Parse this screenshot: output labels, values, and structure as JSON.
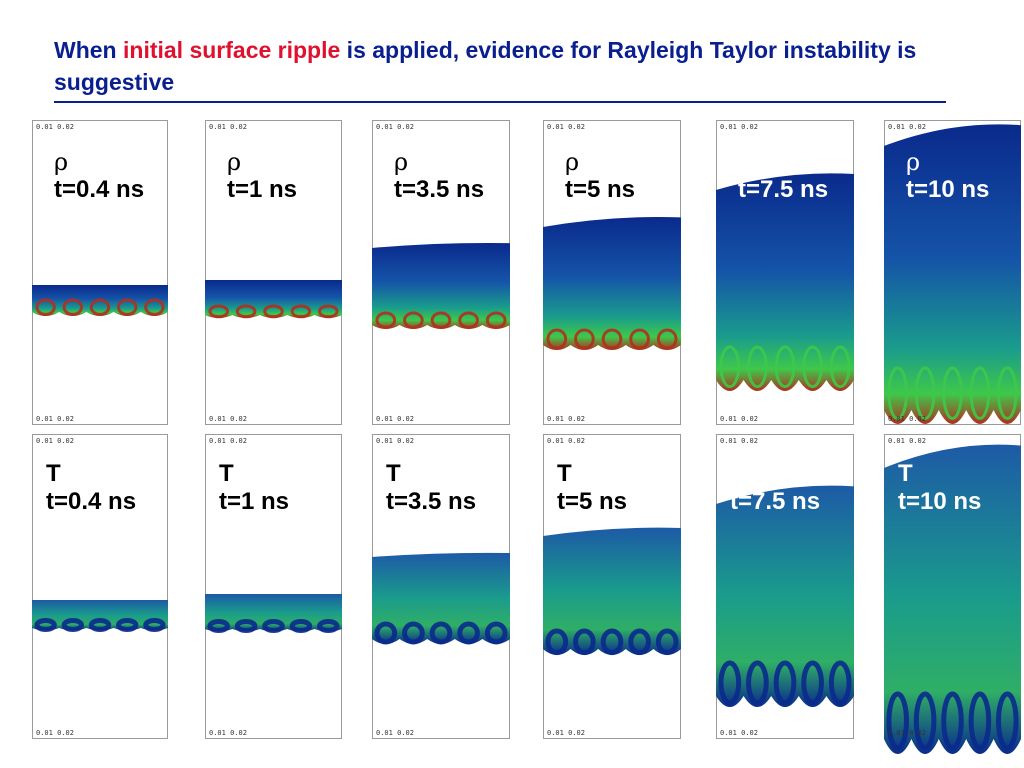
{
  "title": {
    "part1": "When ",
    "highlight": "initial surface ripple",
    "part2": " is applied, evidence for Rayleigh Taylor instability is suggestive"
  },
  "colors": {
    "title": "#0a1f8f",
    "highlight": "#e0102f",
    "deep_blue": "#0a2a8c",
    "teal": "#1a9c8c",
    "green": "#3ec84a",
    "red": "#b0301e"
  },
  "rows": [
    {
      "symbol": "ρ",
      "panels": [
        {
          "time": "t=0.4 ns"
        },
        {
          "time": "t=1 ns"
        },
        {
          "time": "t=3.5 ns"
        },
        {
          "time": "t=5 ns"
        },
        {
          "time": "t=7.5 ns"
        },
        {
          "time": "t=10 ns"
        }
      ]
    },
    {
      "symbol": "T",
      "panels": [
        {
          "time": "t=0.4 ns"
        },
        {
          "time": "t=1 ns"
        },
        {
          "time": "t=3.5 ns"
        },
        {
          "time": "t=5 ns"
        },
        {
          "time": "t=7.5 ns"
        },
        {
          "time": "t=10 ns"
        }
      ]
    }
  ]
}
